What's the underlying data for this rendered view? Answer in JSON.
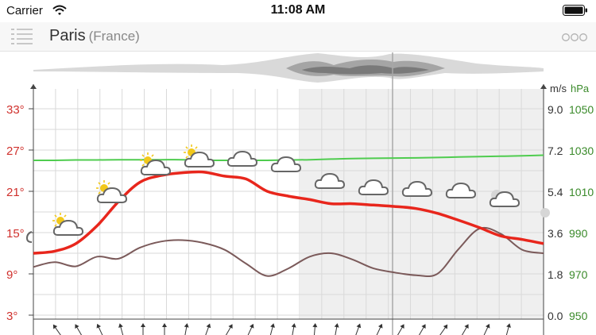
{
  "status_bar": {
    "carrier": "Carrier",
    "time": "11:08 AM"
  },
  "nav": {
    "city": "Paris",
    "country": "(France)"
  },
  "colors": {
    "temperature": "#e8261c",
    "dewpoint": "#7b5a5a",
    "pressure": "#4fcc4f",
    "temp_axis": "#d0312d",
    "pressure_axis": "#3a8a2a",
    "sun": "#f2c81a",
    "cloud": "#666666"
  },
  "icons": {
    "menu": "list-menu-icon",
    "more": "more-dots-icon",
    "wifi": "wifi-icon",
    "battery": "battery-icon",
    "weather": [
      "partly-cloudy-icon",
      "cloud-icon",
      "partly-cloudy-night-icon",
      "wind-arrow-icon"
    ]
  },
  "chart_data": {
    "type": "line",
    "left_axis": {
      "ticks": [
        "3°",
        "9°",
        "15°",
        "21°",
        "27°",
        "33°"
      ],
      "range": [
        3,
        33
      ]
    },
    "right_axis_wind": {
      "unit": "m/s",
      "ticks": [
        "0.0",
        "1.8",
        "3.6",
        "5.4",
        "7.2",
        "9.0"
      ],
      "range": [
        0,
        9
      ]
    },
    "right_axis_pressure": {
      "unit": "hPa",
      "ticks": [
        "950",
        "970",
        "990",
        "1010",
        "1030",
        "1050"
      ],
      "range": [
        950,
        1050
      ]
    },
    "x": [
      0,
      1,
      2,
      3,
      4,
      5,
      6,
      7,
      8,
      9,
      10,
      11,
      12,
      13,
      14,
      15,
      16,
      17,
      18,
      19,
      20,
      21,
      22,
      23,
      24
    ],
    "series": [
      {
        "key": "temperature",
        "axis": "left",
        "values": [
          12,
          12.3,
          13.4,
          16,
          19.5,
          22.3,
          23.3,
          23.7,
          23.8,
          23.2,
          22.8,
          21,
          20.3,
          19.8,
          19.2,
          19.2,
          19,
          18.8,
          18.5,
          17.8,
          16.8,
          15.7,
          14.5,
          14,
          13.4
        ]
      },
      {
        "key": "dewpoint",
        "axis": "left",
        "values": [
          10,
          10.7,
          10.1,
          11.5,
          11.2,
          12.8,
          13.7,
          13.9,
          13.5,
          12.5,
          10.5,
          8.7,
          9.8,
          11.5,
          12,
          11.1,
          9.8,
          9.2,
          8.8,
          9,
          12.6,
          15.6,
          14.8,
          12.5,
          12
        ]
      },
      {
        "key": "pressure",
        "axis": "pressure",
        "values": [
          1025,
          1025,
          1025.2,
          1025.2,
          1025.3,
          1025.3,
          1025.3,
          1025.3,
          1025.1,
          1025,
          1025,
          1025,
          1025.2,
          1025.3,
          1025.6,
          1025.9,
          1026,
          1026.1,
          1026.2,
          1026.4,
          1026.6,
          1026.8,
          1027,
          1027.2,
          1027.5
        ]
      }
    ]
  }
}
